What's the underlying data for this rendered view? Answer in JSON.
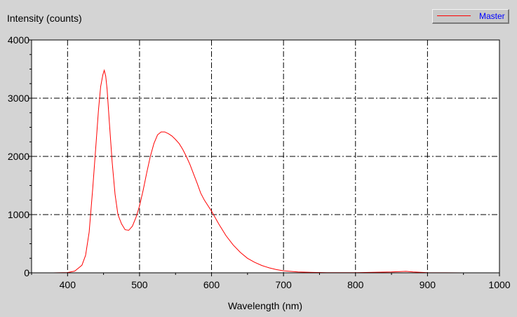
{
  "chart_data": {
    "type": "line",
    "title": "",
    "ylabel": "Intensity (counts)",
    "xlabel": "Wavelength (nm)",
    "xlim": [
      350,
      1000
    ],
    "ylim": [
      0,
      4000
    ],
    "x_ticks": [
      400,
      500,
      600,
      700,
      800,
      900,
      1000
    ],
    "x_tick_labels": [
      "400",
      "500",
      "600",
      "700",
      "800",
      "900",
      "1000"
    ],
    "y_ticks": [
      0,
      1000,
      2000,
      3000,
      4000
    ],
    "y_tick_labels": [
      "0",
      "1000",
      "2000",
      "3000",
      "4000"
    ],
    "grid": true,
    "legend_position": "top-right",
    "series": [
      {
        "name": "Master",
        "color": "#ff0000",
        "x": [
          350,
          380,
          400,
          410,
          420,
          425,
          430,
          435,
          440,
          443,
          446,
          449,
          451,
          453,
          455,
          458,
          462,
          466,
          470,
          475,
          480,
          485,
          490,
          495,
          500,
          505,
          510,
          515,
          520,
          525,
          530,
          535,
          540,
          545,
          550,
          555,
          560,
          565,
          570,
          575,
          580,
          585,
          590,
          600,
          610,
          620,
          630,
          640,
          650,
          660,
          670,
          680,
          690,
          700,
          720,
          740,
          760,
          800,
          850,
          870,
          880,
          900,
          950,
          1000
        ],
        "y": [
          0,
          0,
          5,
          30,
          130,
          300,
          700,
          1450,
          2300,
          2800,
          3200,
          3400,
          3480,
          3380,
          3150,
          2600,
          1900,
          1350,
          1000,
          840,
          740,
          730,
          800,
          950,
          1150,
          1420,
          1720,
          2000,
          2220,
          2370,
          2420,
          2420,
          2390,
          2350,
          2290,
          2220,
          2120,
          2000,
          1860,
          1700,
          1540,
          1370,
          1250,
          1060,
          840,
          640,
          480,
          350,
          250,
          180,
          125,
          85,
          55,
          35,
          15,
          7,
          3,
          2,
          15,
          25,
          15,
          2,
          0,
          0
        ]
      }
    ]
  }
}
